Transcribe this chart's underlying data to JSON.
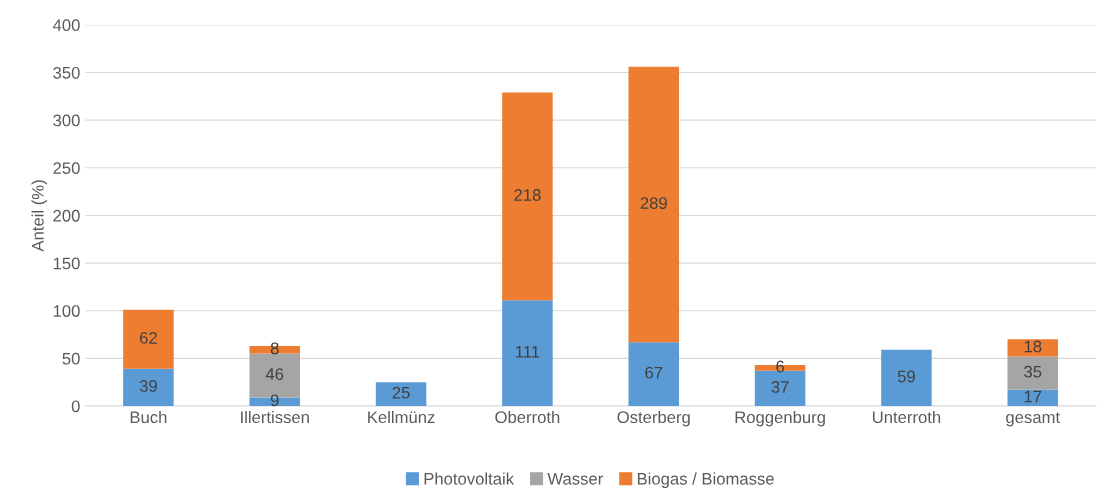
{
  "chart_data": {
    "type": "bar",
    "stacked": true,
    "ylabel": "Anteil (%)",
    "categories": [
      "Buch",
      "Illertissen",
      "Kellmünz",
      "Oberroth",
      "Osterberg",
      "Roggenburg",
      "Unterroth",
      "gesamt"
    ],
    "series": [
      {
        "name": "Photovoltaik",
        "color": "#5b9bd5",
        "values": [
          39,
          9,
          25,
          111,
          67,
          37,
          59,
          17
        ],
        "value_labels": [
          "39",
          "9",
          "25",
          "111",
          "67",
          "37",
          "59",
          "17"
        ]
      },
      {
        "name": "Wasser",
        "color": "#a5a5a5",
        "values": [
          null,
          46,
          null,
          null,
          null,
          null,
          null,
          35
        ],
        "value_labels": [
          null,
          "46",
          null,
          null,
          null,
          null,
          null,
          "35"
        ]
      },
      {
        "name": "Biogas / Biomasse",
        "color": "#ed7d31",
        "values": [
          62,
          8,
          null,
          218,
          289,
          6,
          null,
          18
        ],
        "value_labels": [
          "62",
          "8",
          null,
          "218",
          "289",
          "6",
          null,
          "18"
        ]
      }
    ],
    "ylim": [
      0,
      400
    ],
    "yticks": [
      0,
      50,
      100,
      150,
      200,
      250,
      300,
      350,
      400
    ],
    "grid": "y",
    "legend": "bottom"
  }
}
